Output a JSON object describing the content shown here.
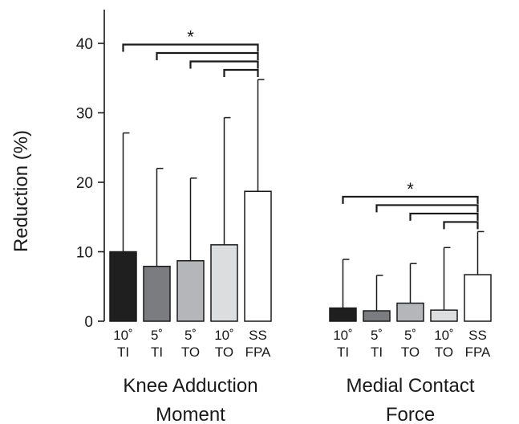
{
  "chart_data": {
    "type": "bar",
    "title": "",
    "ylabel": "Reduction (%)",
    "ylim": [
      0,
      45
    ],
    "yticks": [
      "0",
      "10",
      "20",
      "30",
      "40"
    ],
    "grid": false,
    "legend": "none",
    "colors": [
      "#1f1f1f",
      "#7b7c7f",
      "#b5b6b9",
      "#dcdddf",
      "#ffffff"
    ],
    "groups": [
      {
        "label": "Knee Adduction Moment",
        "label_lines": [
          "Knee Adduction",
          "Moment"
        ],
        "categories": [
          {
            "line1": "10˚",
            "line2": "TI"
          },
          {
            "line1": "5˚",
            "line2": "TI"
          },
          {
            "line1": "5˚",
            "line2": "TO"
          },
          {
            "line1": "10˚",
            "line2": "TO"
          },
          {
            "line1": "SS",
            "line2": "FPA"
          }
        ],
        "values": [
          10.0,
          7.9,
          8.7,
          11.0,
          18.7
        ],
        "error_upper": [
          27.1,
          22.0,
          20.6,
          29.3,
          34.8
        ],
        "significance": "*"
      },
      {
        "label": "Medial Contact Force",
        "label_lines": [
          "Medial Contact",
          "Force"
        ],
        "categories": [
          {
            "line1": "10˚",
            "line2": "TI"
          },
          {
            "line1": "5˚",
            "line2": "TI"
          },
          {
            "line1": "5˚",
            "line2": "TO"
          },
          {
            "line1": "10˚",
            "line2": "TO"
          },
          {
            "line1": "SS",
            "line2": "FPA"
          }
        ],
        "values": [
          1.9,
          1.5,
          2.6,
          1.6,
          6.7
        ],
        "error_upper": [
          8.9,
          6.6,
          8.3,
          10.6,
          12.9
        ],
        "significance": "*"
      }
    ]
  }
}
